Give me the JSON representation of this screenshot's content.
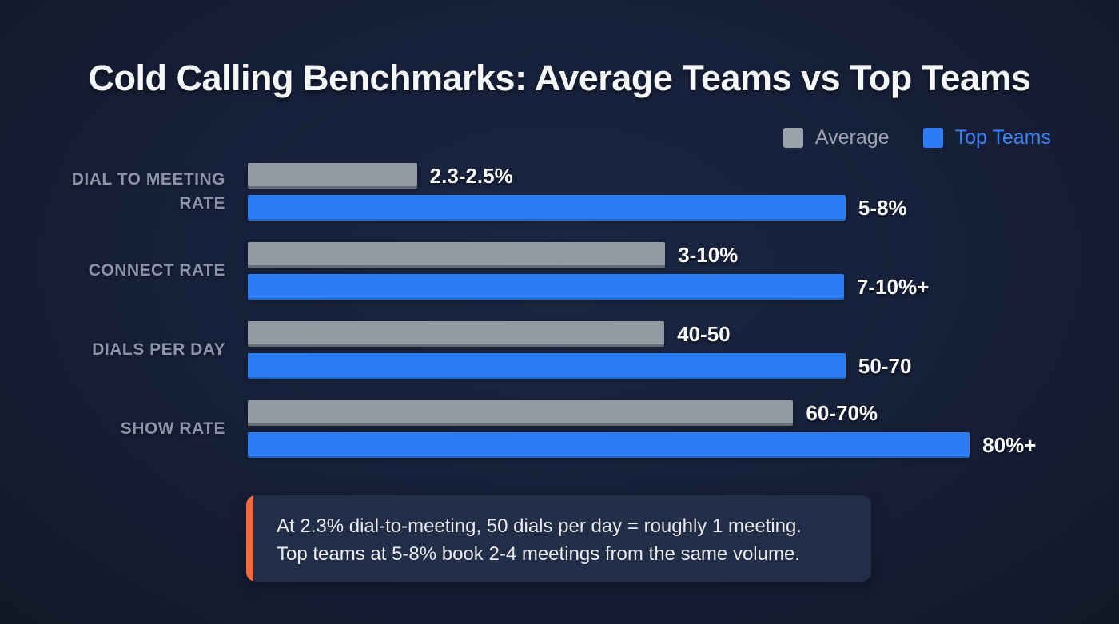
{
  "title": "Cold Calling Benchmarks: Average Teams vs Top Teams",
  "legend": {
    "average": {
      "label": "Average",
      "color": "#9aa2ac"
    },
    "top_teams": {
      "label": "Top Teams",
      "color": "#2b7cf5"
    }
  },
  "colors": {
    "background": "#161f38",
    "title_text": "#f6f7f9",
    "average_bar": "#939aa4",
    "top_teams_bar": "#2e7cf3",
    "category_label": "#8b95aa",
    "value_label": "#fbfcfd",
    "note_background": "#222d47",
    "note_accent": "#f5693e",
    "note_text": "#e8ebf0"
  },
  "chart_data": {
    "type": "bar",
    "orientation": "horizontal",
    "title": "Cold Calling Benchmarks: Average Teams vs Top Teams",
    "legend_position": "top-right",
    "grid": false,
    "categories": [
      "DIAL TO MEETING RATE",
      "CONNECT RATE",
      "DIALS PER DAY",
      "SHOW RATE"
    ],
    "series": [
      {
        "name": "Average",
        "values": [
          "2.3-2.5%",
          "3-10%",
          "40-50",
          "60-70%"
        ]
      },
      {
        "name": "Top Teams",
        "values": [
          "5-8%",
          "7-10%+",
          "50-70",
          "80%+"
        ]
      }
    ],
    "groups": [
      {
        "label": "DIAL TO MEETING RATE",
        "average": {
          "value": "2.3-2.5%",
          "width_pct": 21
        },
        "top": {
          "value": "5-8%",
          "width_pct": 74.2
        }
      },
      {
        "label": "CONNECT RATE",
        "average": {
          "value": "3-10%",
          "width_pct": 51.8
        },
        "top": {
          "value": "7-10%+",
          "width_pct": 74
        }
      },
      {
        "label": "DIALS PER DAY",
        "average": {
          "value": "40-50",
          "width_pct": 51.7
        },
        "top": {
          "value": "50-70",
          "width_pct": 74.2
        }
      },
      {
        "label": "SHOW RATE",
        "average": {
          "value": "60-70%",
          "width_pct": 67.7
        },
        "top": {
          "value": "80%+",
          "width_pct": 89.6
        }
      }
    ]
  },
  "note": {
    "line1": "At 2.3% dial-to-meeting, 50 dials per day = roughly 1 meeting.",
    "line2": "Top teams at 5-8% book 2-4 meetings from the same volume."
  }
}
